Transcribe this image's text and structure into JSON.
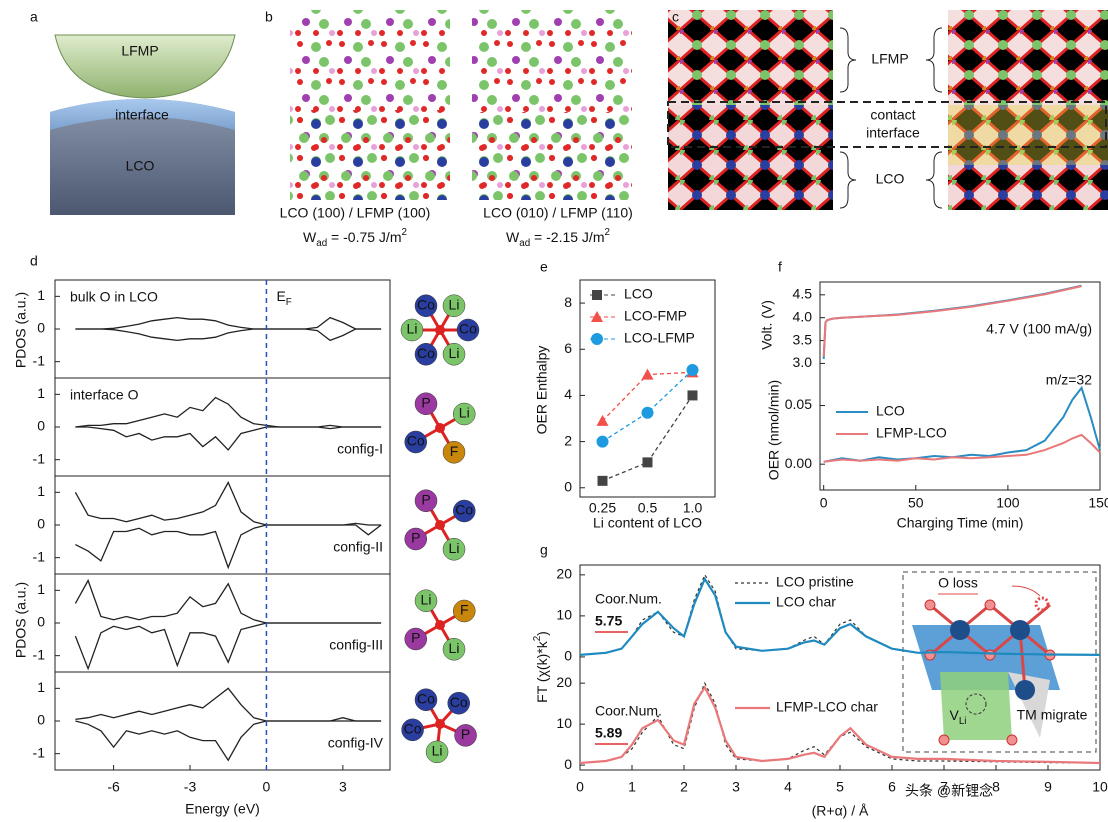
{
  "panel_labels": [
    "a",
    "b",
    "c",
    "d",
    "e",
    "f",
    "g"
  ],
  "panel_a": {
    "top": "LFMP",
    "middle": "interface",
    "bottom": "LCO"
  },
  "panel_b": {
    "structures": [
      {
        "caption": "LCO (100) / LFMP (100)",
        "w": "W",
        "w_sub": "ad",
        "w_value": " = -0.75 J/m",
        "w_sup": "2"
      },
      {
        "caption": "LCO (010) / LFMP (110)",
        "w": "W",
        "w_sub": "ad",
        "w_value": " = -2.15 J/m",
        "w_sup": "2"
      }
    ]
  },
  "panel_c": {
    "top": "LFMP",
    "contact": [
      "contact",
      "interface"
    ],
    "bottom": "LCO"
  },
  "molecules": [
    [
      "Co",
      "Li",
      "Co",
      "Li",
      "Co",
      "Li"
    ],
    [
      "P",
      "Li",
      "F",
      "Co"
    ],
    [
      "P",
      "Co",
      "Li",
      "P"
    ],
    [
      "Li",
      "F",
      "Li",
      "P"
    ],
    [
      "Co",
      "Co",
      "P",
      "Li",
      "Co"
    ]
  ],
  "watermark": "头条 @新锂念",
  "chart_data": [
    {
      "type": "line",
      "xlabel": "Energy (eV)",
      "ylabel": "PDOS (a.u.)",
      "fermi_label": "E",
      "fermi_sub": "F",
      "fermi_level": 0,
      "xlim": [
        -8.3,
        4.85
      ],
      "xticks": [
        -6,
        -3,
        0,
        3
      ],
      "ylim": [
        -1.5,
        1.5
      ],
      "yticks": [
        -1,
        0,
        1
      ],
      "x": [
        -7.5,
        -7,
        -6.5,
        -6,
        -5.5,
        -5,
        -4.5,
        -4,
        -3.5,
        -3,
        -2.5,
        -2,
        -1.5,
        -1,
        -0.5,
        0,
        0.5,
        1,
        1.5,
        2,
        2.5,
        3,
        3.5,
        4,
        4.5
      ],
      "panels": [
        {
          "title": "bulk O in LCO",
          "series": [
            {
              "color": "#222222",
              "values": [
                0,
                0,
                0,
                0.02,
                0.08,
                0.15,
                0.25,
                0.3,
                0.35,
                0.3,
                0.3,
                0.25,
                0.12,
                0.05,
                0,
                0,
                0,
                0,
                0,
                0.05,
                0.35,
                0.2,
                0,
                0,
                0
              ]
            },
            {
              "color": "#222222",
              "values": [
                0,
                0,
                0,
                -0.02,
                -0.08,
                -0.15,
                -0.25,
                -0.3,
                -0.35,
                -0.3,
                -0.3,
                -0.25,
                -0.12,
                -0.05,
                0,
                0,
                0,
                0,
                0,
                -0.05,
                -0.35,
                -0.2,
                0,
                0,
                0
              ]
            }
          ]
        },
        {
          "title": "interface O",
          "label": "config-I",
          "series": [
            {
              "color": "#222222",
              "values": [
                0,
                0.05,
                0.05,
                0.1,
                0.1,
                0.2,
                0.3,
                0.4,
                0.3,
                0.6,
                0.5,
                0.9,
                0.7,
                0.3,
                0.1,
                0.05,
                0,
                0,
                0,
                0,
                0.05,
                0,
                0,
                0,
                0
              ]
            },
            {
              "color": "#222222",
              "values": [
                0,
                0,
                -0.05,
                -0.1,
                -0.3,
                -0.2,
                -0.4,
                -0.3,
                -0.3,
                -0.2,
                -0.6,
                -0.3,
                -0.7,
                -0.2,
                -0.1,
                0,
                0,
                0,
                0,
                0,
                -0.05,
                0,
                0,
                0,
                0
              ]
            }
          ]
        },
        {
          "label": "config-II",
          "series": [
            {
              "color": "#222222",
              "values": [
                1.0,
                0.3,
                0.2,
                0.2,
                0.1,
                0.2,
                0.3,
                0.15,
                0.2,
                0.3,
                0.4,
                0.6,
                1.3,
                0.4,
                0.1,
                0,
                0,
                0,
                0,
                0,
                0,
                0,
                0.05,
                0,
                0
              ]
            },
            {
              "color": "#222222",
              "values": [
                -0.6,
                -0.8,
                -1.1,
                -0.2,
                -0.2,
                -0.1,
                -0.3,
                -0.2,
                -0.2,
                -0.3,
                -0.3,
                -0.2,
                -1.3,
                -0.3,
                -0.1,
                0,
                0,
                0,
                0,
                0,
                0,
                0,
                0,
                -0.3,
                0
              ]
            }
          ]
        },
        {
          "label": "config-III",
          "series": [
            {
              "color": "#222222",
              "values": [
                0.6,
                1.3,
                0.2,
                0.1,
                0.2,
                0.1,
                0.2,
                0.2,
                0.3,
                0.8,
                0.5,
                0.6,
                1.2,
                0.3,
                0.1,
                0,
                0,
                0,
                0,
                0,
                0,
                0,
                0,
                0,
                0
              ]
            },
            {
              "color": "#222222",
              "values": [
                -0.4,
                -1.4,
                -0.3,
                -0.1,
                -0.2,
                -0.1,
                -0.3,
                -0.2,
                -1.3,
                -0.3,
                -0.3,
                -0.4,
                -1.2,
                -0.2,
                -0.1,
                0,
                0,
                0,
                0,
                0,
                0,
                0,
                0,
                0,
                0
              ]
            }
          ]
        },
        {
          "label": "config-IV",
          "series": [
            {
              "color": "#222222",
              "values": [
                0.05,
                0.1,
                0.2,
                0.1,
                0.2,
                0.3,
                0.2,
                0.3,
                0.4,
                0.5,
                0.4,
                0.7,
                1.0,
                0.5,
                0.1,
                0,
                0,
                0,
                0,
                0,
                0,
                0.1,
                0,
                0,
                0
              ]
            },
            {
              "color": "#222222",
              "values": [
                0,
                -0.1,
                -0.3,
                -0.8,
                -0.3,
                -0.4,
                -0.3,
                -0.4,
                -0.3,
                -0.5,
                -0.6,
                -0.6,
                -1.2,
                -0.5,
                -0.1,
                0,
                0,
                0,
                0,
                0,
                0,
                0,
                0,
                0,
                0
              ]
            }
          ]
        }
      ]
    },
    {
      "type": "line",
      "xlabel": "Li content of LCO",
      "ylabel": "OER Enthalpy",
      "categories": [
        "0.25",
        "0.5",
        "1.0"
      ],
      "ylim": [
        -0.4,
        9
      ],
      "yticks": [
        0,
        2,
        4,
        6,
        8
      ],
      "series": [
        {
          "name": "LCO",
          "color": "#444444",
          "marker": "square",
          "values": [
            0.3,
            1.1,
            4.0
          ]
        },
        {
          "name": "LCO-FMP",
          "color": "#f0514a",
          "marker": "triangle",
          "values": [
            2.9,
            4.9,
            5.0
          ]
        },
        {
          "name": "LCO-LFMP",
          "color": "#1e9be0",
          "marker": "circle",
          "values": [
            2.0,
            3.25,
            5.1
          ]
        }
      ]
    },
    {
      "type": "line",
      "xlabel": "Charging Time (min)",
      "xlim": [
        -2,
        150
      ],
      "xticks": [
        0,
        50,
        100,
        150
      ],
      "panels": [
        {
          "ylabel": "Volt. (V)",
          "annotation": "4.7 V (100 mA/g)",
          "ylim": [
            2.9,
            4.78
          ],
          "yticks": [
            {
              "value": 3,
              "label": "3.0"
            },
            3.5,
            {
              "value": 4,
              "label": "4.0"
            },
            4.5
          ],
          "x": [
            0,
            1,
            2,
            5,
            10,
            20,
            40,
            60,
            80,
            100,
            120,
            140
          ],
          "series": [
            {
              "color": "#2b8cc4",
              "values": [
                3.1,
                3.9,
                3.95,
                3.98,
                4.0,
                4.02,
                4.07,
                4.15,
                4.25,
                4.38,
                4.52,
                4.7
              ]
            },
            {
              "color": "#e8787a",
              "values": [
                3.15,
                3.9,
                3.95,
                3.98,
                4.0,
                4.02,
                4.06,
                4.14,
                4.24,
                4.37,
                4.51,
                4.69
              ]
            }
          ]
        },
        {
          "ylabel": "OER (nmol/min)",
          "annotation": "m/z=32",
          "ylim": [
            -0.022,
            0.082
          ],
          "yticks": [
            {
              "value": 0,
              "label": "0.00"
            },
            {
              "value": 0.05,
              "label": "0.05"
            }
          ],
          "x": [
            0,
            10,
            20,
            30,
            40,
            50,
            60,
            70,
            80,
            90,
            100,
            110,
            120,
            125,
            130,
            135,
            140,
            145,
            150
          ],
          "series": [
            {
              "name": "LCO",
              "color": "#2b8cc4",
              "values": [
                0.002,
                0.005,
                0.003,
                0.006,
                0.004,
                0.005,
                0.007,
                0.006,
                0.008,
                0.007,
                0.01,
                0.012,
                0.02,
                0.03,
                0.04,
                0.055,
                0.065,
                0.04,
                0.012
              ]
            },
            {
              "name": "LFMP-LCO",
              "color": "#e8787a",
              "values": [
                0.002,
                0.004,
                0.003,
                0.004,
                0.003,
                0.005,
                0.004,
                0.006,
                0.005,
                0.006,
                0.007,
                0.008,
                0.012,
                0.015,
                0.018,
                0.022,
                0.025,
                0.018,
                0.01
              ]
            }
          ]
        }
      ]
    },
    {
      "type": "line",
      "xlabel": "(R+α) / Å",
      "ylabel": "FT (χ(k)*k",
      "ylabel_sup": "2",
      "ylabel_end": ")",
      "xlim": [
        0,
        10
      ],
      "xticks": [
        0,
        1,
        2,
        3,
        4,
        5,
        6,
        7,
        8,
        9,
        10
      ],
      "x": [
        0,
        0.5,
        0.8,
        1.0,
        1.2,
        1.5,
        1.8,
        2.0,
        2.2,
        2.4,
        2.6,
        2.8,
        3.0,
        3.5,
        4.0,
        4.3,
        4.5,
        4.7,
        5.0,
        5.2,
        5.5,
        6.0,
        6.5,
        7,
        8,
        9,
        10
      ],
      "panels": [
        {
          "annotation": "Coor.Num.",
          "coordination": "5.75",
          "ylim": [
            -2.7,
            22.4
          ],
          "yticks": [
            0,
            10,
            20
          ],
          "series": [
            {
              "name": "LCO pristine",
              "color": "#333333",
              "dash": true,
              "values": [
                0.5,
                1,
                2,
                5,
                9,
                11,
                6,
                5,
                14,
                20,
                16,
                6,
                2,
                1.5,
                2,
                4,
                5,
                3,
                8,
                9,
                5,
                2,
                1,
                1.2,
                0.8,
                0.6,
                0.5
              ]
            },
            {
              "name": "LCO char",
              "color": "#1f8ac0",
              "values": [
                0.5,
                1,
                2,
                5,
                8,
                11,
                7,
                5,
                13,
                19,
                15,
                6,
                2.5,
                1.5,
                2,
                3.5,
                4,
                3,
                7,
                8,
                5,
                2,
                1,
                1.2,
                0.8,
                0.6,
                0.5
              ]
            }
          ]
        },
        {
          "annotation": "Coor.Num.",
          "coordination": "5.89",
          "ylim": [
            -1.2,
            23.7
          ],
          "yticks": [
            0,
            10,
            20
          ],
          "series": [
            {
              "color": "#333333",
              "dash": true,
              "values": [
                0.5,
                1,
                2,
                4,
                8,
                12,
                5,
                4,
                14,
                20,
                15,
                5,
                1.5,
                1,
                1.5,
                3.5,
                4.5,
                2.5,
                7,
                8,
                4.5,
                1.5,
                1,
                1,
                0.8,
                0.6,
                0.5
              ]
            },
            {
              "name": "LFMP-LCO char",
              "color": "#e8787a",
              "values": [
                0.5,
                1,
                2,
                5,
                9,
                11,
                6,
                5,
                15,
                19,
                14,
                6,
                2,
                1,
                1.5,
                2.5,
                3,
                2,
                7,
                9,
                5,
                2,
                1.5,
                1.5,
                1,
                0.8,
                0.5
              ]
            }
          ]
        }
      ],
      "inset": {
        "o_loss": "O loss",
        "v": "V",
        "v_sub": "Li",
        "tm": "TM migrate"
      }
    }
  ]
}
